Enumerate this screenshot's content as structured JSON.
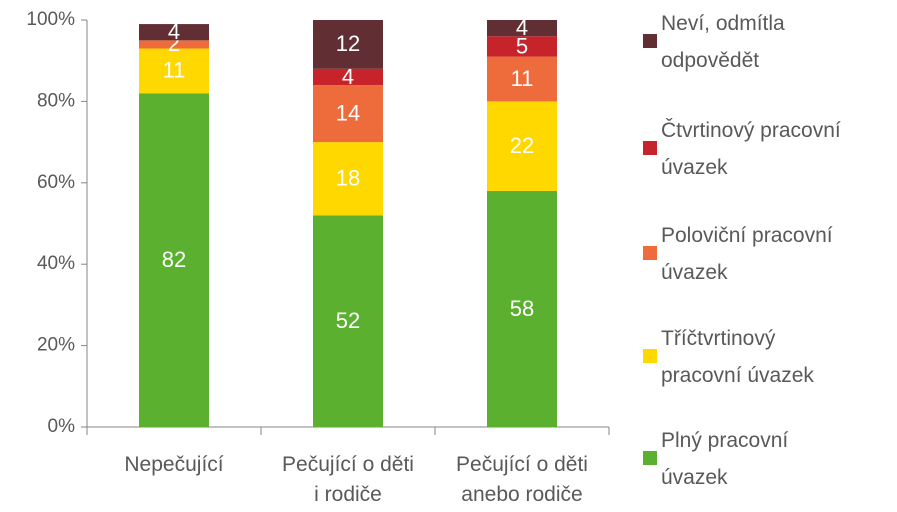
{
  "chart_data": {
    "type": "stacked_bar",
    "categories": [
      "Nepečující",
      "Pečující o děti i rodiče",
      "Pečující o děti anebo rodiče"
    ],
    "series": [
      {
        "name": "Plný pracovní úvazek",
        "color": "#5bb030",
        "values": [
          82,
          52,
          58
        ]
      },
      {
        "name": "Tříčtvrtinový pracovní úvazek",
        "color": "#ffd800",
        "values": [
          11,
          18,
          22
        ]
      },
      {
        "name": "Poloviční pracovní úvazek",
        "color": "#ee6b3b",
        "values": [
          2,
          14,
          11
        ]
      },
      {
        "name": "Čtvrtinový pracovní úvazek",
        "color": "#c7232b",
        "values": [
          null,
          4,
          5
        ]
      },
      {
        "name": "Neví, odmítla odpovědět",
        "color": "#612f33",
        "values": [
          4,
          12,
          4
        ]
      }
    ],
    "ylim": [
      0,
      100
    ],
    "yticks": [
      {
        "value": 0,
        "label": "0%"
      },
      {
        "value": 20,
        "label": "20%"
      },
      {
        "value": 40,
        "label": "40%"
      },
      {
        "value": 60,
        "label": "60%"
      },
      {
        "value": 80,
        "label": "80%"
      },
      {
        "value": 100,
        "label": "100%"
      }
    ],
    "legend": "right"
  }
}
